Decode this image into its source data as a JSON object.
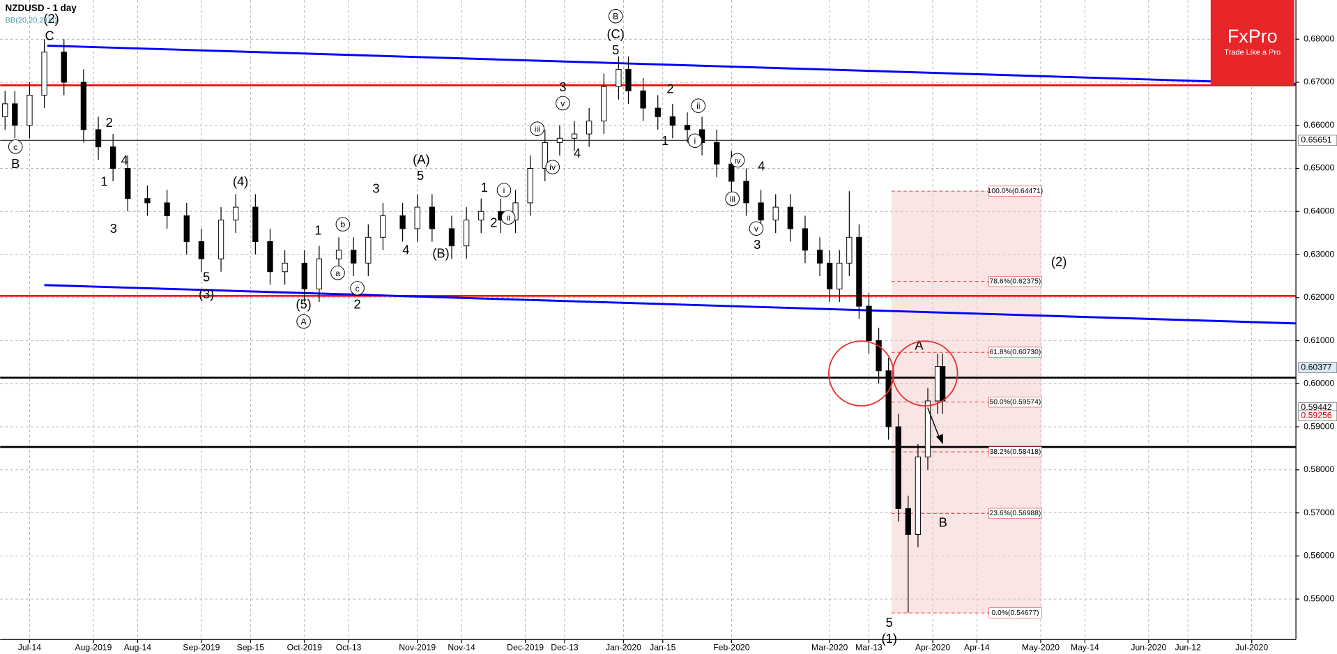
{
  "chart_data": {
    "type": "candlestick",
    "title": "NZDUSD - 1 day",
    "subtitle": "BB(20,20,2.00)",
    "brand": "FxPro",
    "slogan": "Trade Like a Pro",
    "grid": true,
    "xlim": [
      0,
      264
    ],
    "ylim": [
      0.5406,
      0.6891
    ],
    "xticks": [
      {
        "value": 6,
        "label": "Jul-14"
      },
      {
        "value": 19,
        "label": "Aug-2019"
      },
      {
        "value": 28,
        "label": "Aug-14"
      },
      {
        "value": 41,
        "label": "Sep-2019"
      },
      {
        "value": 51,
        "label": "Sep-15"
      },
      {
        "value": 62,
        "label": "Oct-2019"
      },
      {
        "value": 71,
        "label": "Oct-13"
      },
      {
        "value": 85,
        "label": "Nov-2019"
      },
      {
        "value": 94,
        "label": "Nov-14"
      },
      {
        "value": 107,
        "label": "Dec-2019"
      },
      {
        "value": 115,
        "label": "Dec-13"
      },
      {
        "value": 127,
        "label": "Jan-2020"
      },
      {
        "value": 135,
        "label": "Jan-15"
      },
      {
        "value": 149,
        "label": "Feb-2020"
      },
      {
        "value": 169,
        "label": "Mar-2020"
      },
      {
        "value": 177,
        "label": "Mar-13"
      },
      {
        "value": 190,
        "label": "Apr-2020"
      },
      {
        "value": 199,
        "label": "Apr-14"
      },
      {
        "value": 212,
        "label": "May-2020"
      },
      {
        "value": 221,
        "label": "May-14"
      },
      {
        "value": 234,
        "label": "Jun-2020"
      },
      {
        "value": 242,
        "label": "Jun-12"
      },
      {
        "value": 255,
        "label": "Jul-2020"
      }
    ],
    "yticks": [
      {
        "value": 0.55,
        "label": "0.55000"
      },
      {
        "value": 0.56,
        "label": "0.56000"
      },
      {
        "value": 0.57,
        "label": "0.57000"
      },
      {
        "value": 0.58,
        "label": "0.58000"
      },
      {
        "value": 0.59,
        "label": "0.59000"
      },
      {
        "value": 0.6,
        "label": "0.60000"
      },
      {
        "value": 0.61,
        "label": "0.61000"
      },
      {
        "value": 0.62,
        "label": "0.62000"
      },
      {
        "value": 0.63,
        "label": "0.63000"
      },
      {
        "value": 0.64,
        "label": "0.64000"
      },
      {
        "value": 0.65,
        "label": "0.65000"
      },
      {
        "value": 0.66,
        "label": "0.66000"
      },
      {
        "value": 0.67,
        "label": "0.67000"
      },
      {
        "value": 0.68,
        "label": "0.68000"
      }
    ],
    "x": [
      1,
      3,
      6,
      9,
      13,
      17,
      20,
      23,
      26,
      30,
      34,
      38,
      41,
      45,
      48,
      52,
      55,
      58,
      62,
      65,
      69,
      72,
      75,
      78,
      82,
      85,
      88,
      92,
      95,
      98,
      102,
      105,
      108,
      111,
      114,
      117,
      120,
      123,
      126,
      128,
      131,
      134,
      137,
      140,
      143,
      146,
      149,
      152,
      155,
      158,
      161,
      164,
      167,
      169,
      171,
      173,
      175,
      177,
      179,
      181,
      183,
      185,
      187,
      189,
      191,
      192
    ],
    "open": [
      0.662,
      0.665,
      0.66,
      0.667,
      0.677,
      0.67,
      0.659,
      0.655,
      0.65,
      0.643,
      0.642,
      0.639,
      0.633,
      0.629,
      0.638,
      0.641,
      0.633,
      0.626,
      0.628,
      0.622,
      0.629,
      0.631,
      0.628,
      0.634,
      0.639,
      0.636,
      0.641,
      0.636,
      0.632,
      0.638,
      0.64,
      0.638,
      0.642,
      0.65,
      0.656,
      0.657,
      0.658,
      0.661,
      0.669,
      0.673,
      0.668,
      0.664,
      0.662,
      0.66,
      0.659,
      0.656,
      0.651,
      0.647,
      0.642,
      0.638,
      0.641,
      0.636,
      0.631,
      0.628,
      0.622,
      0.628,
      0.634,
      0.618,
      0.61,
      0.603,
      0.59,
      0.571,
      0.565,
      0.583,
      0.596,
      0.604
    ],
    "high": [
      0.668,
      0.668,
      0.67,
      0.68,
      0.68,
      0.673,
      0.662,
      0.658,
      0.653,
      0.646,
      0.645,
      0.642,
      0.636,
      0.641,
      0.644,
      0.644,
      0.636,
      0.631,
      0.631,
      0.632,
      0.634,
      0.634,
      0.637,
      0.642,
      0.642,
      0.644,
      0.644,
      0.639,
      0.641,
      0.643,
      0.643,
      0.645,
      0.653,
      0.659,
      0.66,
      0.661,
      0.664,
      0.672,
      0.676,
      0.676,
      0.671,
      0.667,
      0.665,
      0.663,
      0.662,
      0.659,
      0.654,
      0.65,
      0.645,
      0.644,
      0.644,
      0.639,
      0.634,
      0.631,
      0.631,
      0.6447,
      0.637,
      0.621,
      0.613,
      0.606,
      0.593,
      0.574,
      0.586,
      0.599,
      0.607,
      0.607
    ],
    "low": [
      0.659,
      0.657,
      0.657,
      0.664,
      0.667,
      0.656,
      0.652,
      0.647,
      0.64,
      0.639,
      0.636,
      0.63,
      0.626,
      0.626,
      0.635,
      0.63,
      0.623,
      0.623,
      0.619,
      0.619,
      0.626,
      0.625,
      0.625,
      0.631,
      0.633,
      0.633,
      0.633,
      0.629,
      0.629,
      0.635,
      0.635,
      0.635,
      0.639,
      0.647,
      0.653,
      0.654,
      0.655,
      0.658,
      0.666,
      0.665,
      0.661,
      0.659,
      0.657,
      0.656,
      0.653,
      0.648,
      0.644,
      0.639,
      0.635,
      0.635,
      0.633,
      0.628,
      0.625,
      0.619,
      0.619,
      0.625,
      0.615,
      0.607,
      0.6,
      0.587,
      0.568,
      0.5468,
      0.562,
      0.58,
      0.593,
      0.593
    ],
    "close": [
      0.665,
      0.66,
      0.667,
      0.677,
      0.67,
      0.659,
      0.655,
      0.65,
      0.643,
      0.642,
      0.639,
      0.633,
      0.629,
      0.638,
      0.641,
      0.633,
      0.626,
      0.628,
      0.622,
      0.629,
      0.631,
      0.628,
      0.634,
      0.639,
      0.636,
      0.641,
      0.636,
      0.632,
      0.638,
      0.64,
      0.638,
      0.642,
      0.65,
      0.656,
      0.657,
      0.658,
      0.661,
      0.669,
      0.673,
      0.668,
      0.664,
      0.662,
      0.66,
      0.659,
      0.656,
      0.651,
      0.647,
      0.642,
      0.638,
      0.641,
      0.636,
      0.631,
      0.628,
      0.622,
      0.628,
      0.634,
      0.618,
      0.61,
      0.603,
      0.59,
      0.571,
      0.565,
      0.583,
      0.596,
      0.604,
      0.596
    ],
    "levels": [
      {
        "value": 0.6693,
        "color": "#ff0000"
      },
      {
        "value": 0.6204,
        "color": "#ff0000"
      },
      {
        "value": 0.6014,
        "color": "#000000"
      },
      {
        "value": 0.5853,
        "color": "#000000"
      },
      {
        "value": 0.65651,
        "color": "#000000"
      }
    ],
    "trendlines": [
      {
        "x": [
          9.6,
          264
        ],
        "y": [
          0.6785,
          0.6696
        ],
        "color": "#0000ff"
      },
      {
        "x": [
          9,
          264
        ],
        "y": [
          0.6229,
          0.614
        ],
        "color": "#0000ff"
      }
    ],
    "fib_range": {
      "x": [
        181.6,
        212.2
      ],
      "y": [
        0.54677,
        0.64471
      ]
    },
    "fib_levels": [
      {
        "value": 0.64471,
        "label": "100.0%(0.64471)"
      },
      {
        "value": 0.62375,
        "label": "78.6%(0.62375)"
      },
      {
        "value": 0.6073,
        "label": "61.8%(0.60730)"
      },
      {
        "value": 0.59574,
        "label": "50.0%(0.59574)"
      },
      {
        "value": 0.58418,
        "label": "38.2%(0.58418)"
      },
      {
        "value": 0.56988,
        "label": "23.6%(0.56988)"
      },
      {
        "value": 0.54677,
        "label": "0.0%(0.54677)"
      }
    ],
    "price_markers": [
      {
        "value": 0.65651,
        "label": "0.65651"
      },
      {
        "value": 0.60377,
        "label": "0.60377"
      },
      {
        "value": 0.59442,
        "label": "0.59442"
      },
      {
        "value": 0.59256,
        "label": "0.59256"
      }
    ],
    "annotations": [
      "(2)",
      "C",
      "c",
      "B",
      "2",
      "4",
      "1",
      "3",
      "(4)",
      "5",
      "(3)",
      "1",
      "b",
      "a",
      "c",
      "2",
      "(5)",
      "A",
      "3",
      "(A)",
      "5",
      "4",
      "(B)",
      "1",
      "i",
      "ii",
      "2",
      "3",
      "v",
      "iii",
      "iv",
      "4",
      "B",
      "(C)",
      "5",
      "2",
      "ii",
      "i",
      "1",
      "iv",
      "4",
      "iii",
      "v",
      "3",
      "A",
      "B",
      "(2)",
      "5",
      "(1)"
    ]
  }
}
